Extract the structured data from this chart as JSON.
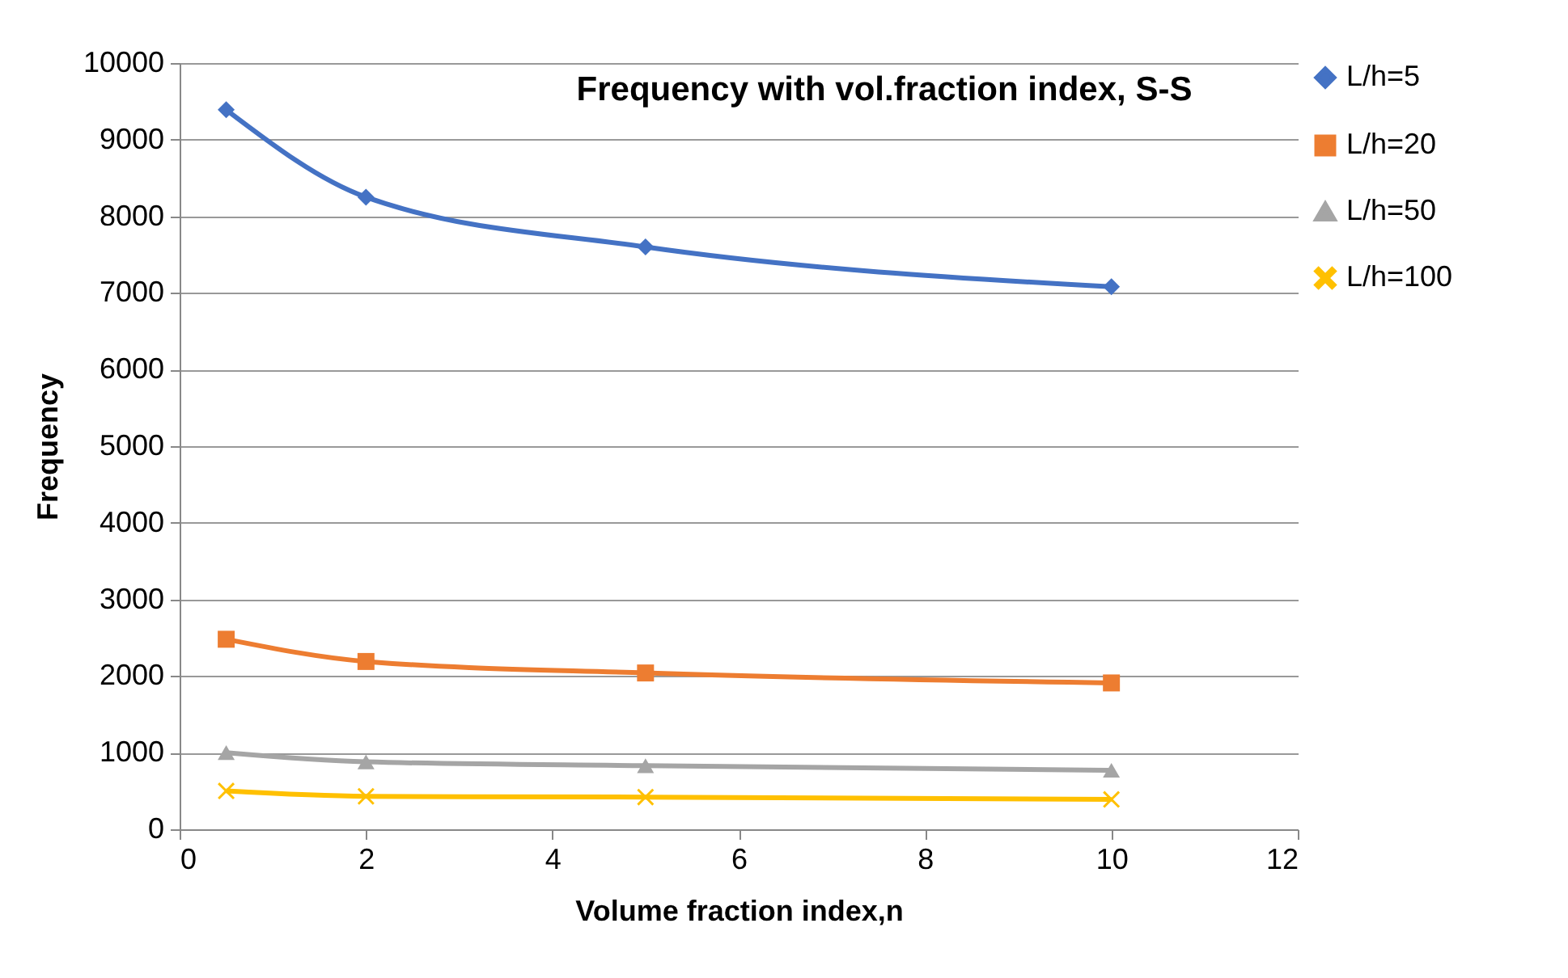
{
  "chart_data": {
    "type": "line",
    "title": "Frequency with vol.fraction index, S-S",
    "xlabel": "Volume fraction index,n",
    "ylabel": "Frequency",
    "x": [
      0.5,
      2,
      5,
      10
    ],
    "series": [
      {
        "name": "L/h=5",
        "color": "#4472c4",
        "marker": "diamond",
        "values": [
          9390,
          8250,
          7600,
          7080
        ]
      },
      {
        "name": "L/h=20",
        "color": "#ed7d31",
        "marker": "square",
        "values": [
          2480,
          2190,
          2040,
          1910
        ]
      },
      {
        "name": "L/h=50",
        "color": "#a5a5a5",
        "marker": "triangle",
        "values": [
          1000,
          880,
          830,
          770
        ]
      },
      {
        "name": "L/h=100",
        "color": "#ffc000",
        "marker": "cross",
        "values": [
          500,
          430,
          420,
          390
        ]
      }
    ],
    "xlim": [
      0,
      12
    ],
    "xticks": [
      0,
      2,
      4,
      6,
      8,
      10,
      12
    ],
    "ylim": [
      0,
      10000
    ],
    "yticks": [
      0,
      1000,
      2000,
      3000,
      4000,
      5000,
      6000,
      7000,
      8000,
      9000,
      10000
    ],
    "grid": "y",
    "legend": "right",
    "line_style": "solid"
  }
}
